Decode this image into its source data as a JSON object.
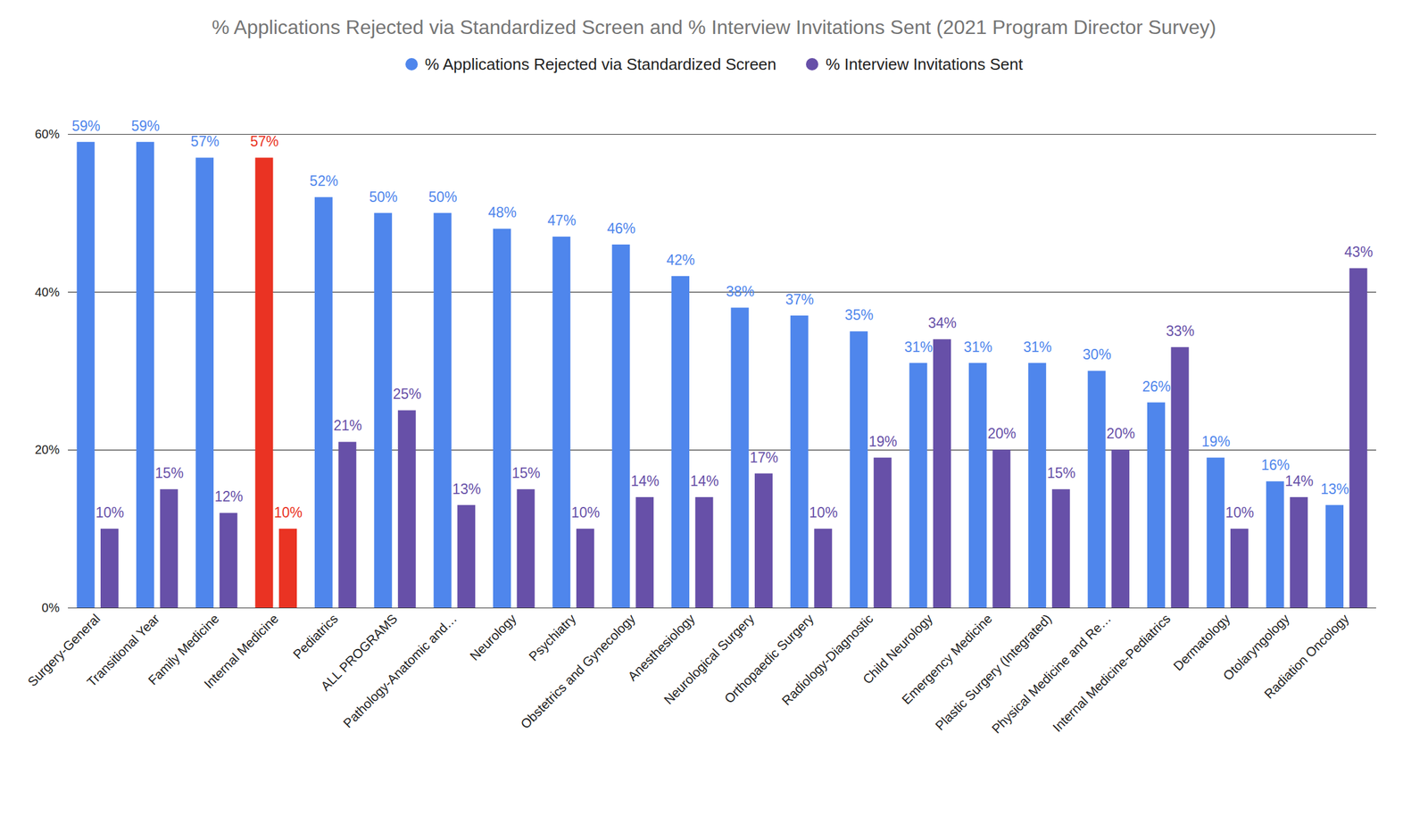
{
  "chart_data": {
    "type": "bar",
    "title": "% Applications Rejected via Standardized Screen and % Interview Invitations Sent (2021 Program Director Survey)",
    "categories": [
      "Surgery-General",
      "Transitional Year",
      "Family Medicine",
      "Internal Medicine",
      "Pediatrics",
      "ALL PROGRAMS",
      "Pathology-Anatomic and…",
      "Neurology",
      "Psychiatry",
      "Obstetrics and Gynecology",
      "Anesthesiology",
      "Neurological Surgery",
      "Orthopaedic Surgery",
      "Radiology-Diagnostic",
      "Child Neurology",
      "Emergency Medicine",
      "Plastic Surgery (Integrated)",
      "Physical Medicine and Re…",
      "Internal Medicine-Pediatrics",
      "Dermatology",
      "Otolaryngology",
      "Radiation Oncology"
    ],
    "series": [
      {
        "name": "% Applications Rejected via Standardized Screen",
        "color": "#4f86ec",
        "colors": [
          "#4f86ec",
          "#4f86ec",
          "#4f86ec",
          "#ea3323",
          "#4f86ec",
          "#4f86ec",
          "#4f86ec",
          "#4f86ec",
          "#4f86ec",
          "#4f86ec",
          "#4f86ec",
          "#4f86ec",
          "#4f86ec",
          "#4f86ec",
          "#4f86ec",
          "#4f86ec",
          "#4f86ec",
          "#4f86ec",
          "#4f86ec",
          "#4f86ec",
          "#4f86ec",
          "#4f86ec"
        ],
        "values": [
          59,
          59,
          57,
          57,
          52,
          50,
          50,
          48,
          47,
          46,
          42,
          38,
          37,
          35,
          31,
          31,
          31,
          30,
          26,
          19,
          16,
          13
        ],
        "value_labels": [
          "59%",
          "59%",
          "57%",
          "57%",
          "52%",
          "50%",
          "50%",
          "48%",
          "47%",
          "46%",
          "42%",
          "38%",
          "37%",
          "35%",
          "31%",
          "31%",
          "31%",
          "30%",
          "26%",
          "19%",
          "16%",
          "13%"
        ]
      },
      {
        "name": "% Interview Invitations Sent",
        "color": "#6750a8",
        "colors": [
          "#6750a8",
          "#6750a8",
          "#6750a8",
          "#ea3323",
          "#6750a8",
          "#6750a8",
          "#6750a8",
          "#6750a8",
          "#6750a8",
          "#6750a8",
          "#6750a8",
          "#6750a8",
          "#6750a8",
          "#6750a8",
          "#6750a8",
          "#6750a8",
          "#6750a8",
          "#6750a8",
          "#6750a8",
          "#6750a8",
          "#6750a8",
          "#6750a8"
        ],
        "values": [
          10,
          15,
          12,
          10,
          21,
          25,
          13,
          15,
          10,
          14,
          14,
          17,
          10,
          19,
          34,
          20,
          15,
          20,
          33,
          10,
          14,
          43
        ],
        "value_labels": [
          "10%",
          "15%",
          "12%",
          "10%",
          "21%",
          "25%",
          "13%",
          "15%",
          "10%",
          "14%",
          "14%",
          "17%",
          "10%",
          "19%",
          "34%",
          "20%",
          "15%",
          "20%",
          "33%",
          "10%",
          "14%",
          "43%"
        ]
      }
    ],
    "ylim": [
      0,
      60
    ],
    "yticks": [
      {
        "value": 0,
        "label": "0%"
      },
      {
        "value": 20,
        "label": "20%"
      },
      {
        "value": 40,
        "label": "40%"
      },
      {
        "value": 60,
        "label": "60%"
      }
    ],
    "grid": true,
    "legend": "top",
    "data_labels": true
  }
}
